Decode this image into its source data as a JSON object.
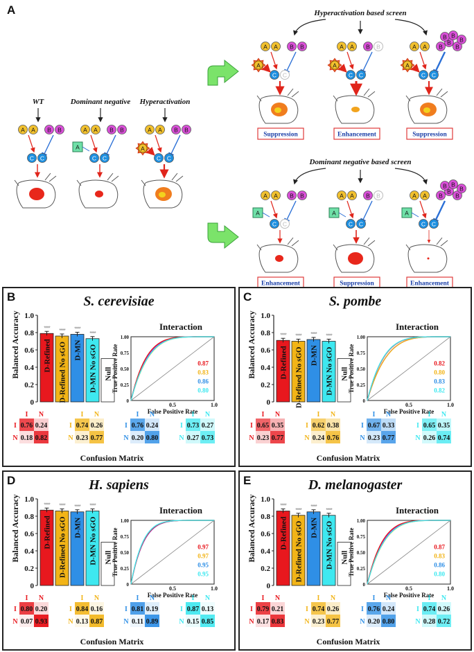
{
  "panel_a": {
    "letter": "A",
    "labels": {
      "wt": "WT",
      "dominant_negative": "Dominant negative",
      "hyperactivation": "Hyperactivation",
      "hyper_screen": "Hyperactivation based screen",
      "dn_screen": "Dominant negative based screen"
    },
    "node_letters": {
      "a": "A",
      "b": "B",
      "c": "C"
    },
    "outcomes_top": [
      "Suppression",
      "Enhancement",
      "Suppression"
    ],
    "outcomes_bottom": [
      "Enhancement",
      "Suppression",
      "Enhancement"
    ],
    "colors": {
      "a": "#f2c12e",
      "b": "#d94fd8",
      "c": "#1d8fe0",
      "dn_box": "#6fe0a8",
      "arrow_red": "#e0251b",
      "inhibit_blue": "#2a6fd6",
      "outcome_text": "#1b3fa8",
      "outcome_border": "#e03a3a",
      "big_arrow": "#7be36a"
    }
  },
  "confusion_matrix_label": "Confusion Matrix",
  "interaction_label": "Interaction",
  "ylabel": "Balanced Accuracy",
  "roc_xlabel": "False Positive Rate",
  "roc_ylabel": "True Positive Rate",
  "cm_headers": [
    "I",
    "N"
  ],
  "series_colors": [
    "#e8181e",
    "#f2b417",
    "#2f8fe6",
    "#3ee8f0"
  ],
  "chart_data": [
    {
      "panel": "B",
      "title": "S. cerevisiae",
      "type": "bar",
      "categories": [
        "D-Refined",
        "D-Refined No sGO",
        "D-MN",
        "D-MN No sGO",
        "Null"
      ],
      "values": [
        0.79,
        0.76,
        0.78,
        0.73,
        0.5
      ],
      "ylim": [
        0,
        1.0
      ],
      "yticks": [
        "0",
        "0.2",
        "0.4",
        "0.6",
        "0.8",
        "1.0"
      ],
      "roc": {
        "title": "Interaction",
        "auc": [
          "0.87",
          "0.83",
          "0.86",
          "0.80"
        ],
        "xticks": [
          "0.5",
          "1.0"
        ],
        "yticks": [
          "0",
          "0.25",
          "0.50",
          "0.75",
          "1.00"
        ]
      },
      "confusion": [
        [
          [
            0.76,
            0.24
          ],
          [
            0.18,
            0.82
          ]
        ],
        [
          [
            0.74,
            0.26
          ],
          [
            0.23,
            0.77
          ]
        ],
        [
          [
            0.76,
            0.24
          ],
          [
            0.2,
            0.8
          ]
        ],
        [
          [
            0.73,
            0.27
          ],
          [
            0.27,
            0.73
          ]
        ]
      ]
    },
    {
      "panel": "C",
      "title": "S. pombe",
      "type": "bar",
      "categories": [
        "D-Refined",
        "D-Refined No sGO",
        "D-MN",
        "D-MN No sGO",
        "Null"
      ],
      "values": [
        0.71,
        0.7,
        0.72,
        0.7,
        0.5
      ],
      "ylim": [
        0,
        1.0
      ],
      "yticks": [
        "0",
        "0.2",
        "0.4",
        "0.6",
        "0.8",
        "1.0"
      ],
      "roc": {
        "title": "Interaction",
        "auc": [
          "0.82",
          "0.80",
          "0.83",
          "0.82"
        ],
        "xticks": [
          "0.5",
          "1.0"
        ],
        "yticks": [
          "0",
          "0.25",
          "0.50",
          "0.75",
          "1.00"
        ]
      },
      "confusion": [
        [
          [
            0.65,
            0.35
          ],
          [
            0.23,
            0.77
          ]
        ],
        [
          [
            0.62,
            0.38
          ],
          [
            0.24,
            0.76
          ]
        ],
        [
          [
            0.67,
            0.33
          ],
          [
            0.23,
            0.77
          ]
        ],
        [
          [
            0.65,
            0.35
          ],
          [
            0.26,
            0.74
          ]
        ]
      ]
    },
    {
      "panel": "D",
      "title": "H. sapiens",
      "type": "bar",
      "categories": [
        "D-Refined",
        "D-Refined No sGO",
        "D-MN",
        "D-MN No sGO",
        "Null"
      ],
      "values": [
        0.87,
        0.86,
        0.85,
        0.86,
        0.5
      ],
      "ylim": [
        0,
        1.0
      ],
      "yticks": [
        "0",
        "0.2",
        "0.4",
        "0.6",
        "0.8",
        "1.0"
      ],
      "roc": {
        "title": "Interaction",
        "auc": [
          "0.97",
          "0.97",
          "0.95",
          "0.95"
        ],
        "xticks": [
          "0.5",
          "1.0"
        ],
        "yticks": [
          "0",
          "0.25",
          "0.50",
          "0.75",
          "1.00"
        ]
      },
      "confusion": [
        [
          [
            0.8,
            0.2
          ],
          [
            0.07,
            0.93
          ]
        ],
        [
          [
            0.84,
            0.16
          ],
          [
            0.13,
            0.87
          ]
        ],
        [
          [
            0.81,
            0.19
          ],
          [
            0.11,
            0.89
          ]
        ],
        [
          [
            0.87,
            0.13
          ],
          [
            0.15,
            0.85
          ]
        ]
      ]
    },
    {
      "panel": "E",
      "title": "D. melanogaster",
      "type": "bar",
      "categories": [
        "D-Refined",
        "D-Refined No sGO",
        "D-MN",
        "D-MN No sGO",
        "Null"
      ],
      "values": [
        0.86,
        0.81,
        0.85,
        0.81,
        0.5
      ],
      "ylim": [
        0,
        1.0
      ],
      "yticks": [
        "0",
        "0.2",
        "0.4",
        "0.6",
        "0.8",
        "1.0"
      ],
      "roc": {
        "title": "Interaction",
        "auc": [
          "0.87",
          "0.83",
          "0.86",
          "0.80"
        ],
        "xticks": [
          "0.5",
          "1.0"
        ],
        "yticks": [
          "0",
          "0.25",
          "0.50",
          "0.75",
          "1.00"
        ]
      },
      "confusion": [
        [
          [
            0.79,
            0.21
          ],
          [
            0.17,
            0.83
          ]
        ],
        [
          [
            0.74,
            0.26
          ],
          [
            0.23,
            0.77
          ]
        ],
        [
          [
            0.76,
            0.24
          ],
          [
            0.2,
            0.8
          ]
        ],
        [
          [
            0.74,
            0.26
          ],
          [
            0.28,
            0.72
          ]
        ]
      ]
    }
  ]
}
